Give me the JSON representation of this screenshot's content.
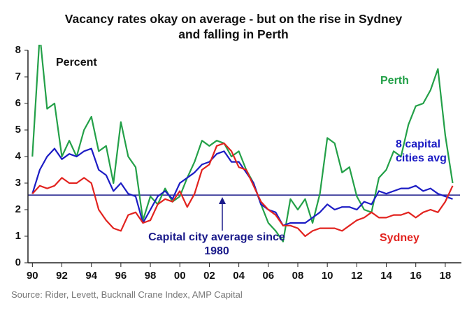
{
  "chart_data": {
    "type": "line",
    "title": "Vacancy rates okay on average - but on the rise in Sydney and falling in Perth",
    "y_label": "Percent",
    "source": "Source: Rider, Levett, Bucknall Crane Index, AMP Capital",
    "xlim": [
      1989.7,
      2019
    ],
    "ylim": [
      0,
      8
    ],
    "yticks": [
      0,
      1,
      2,
      3,
      4,
      5,
      6,
      7,
      8
    ],
    "xticks": [
      {
        "value": 1990,
        "label": "90"
      },
      {
        "value": 1992,
        "label": "92"
      },
      {
        "value": 1994,
        "label": "94"
      },
      {
        "value": 1996,
        "label": "96"
      },
      {
        "value": 1998,
        "label": "98"
      },
      {
        "value": 2000,
        "label": "00"
      },
      {
        "value": 2002,
        "label": "02"
      },
      {
        "value": 2004,
        "label": "04"
      },
      {
        "value": 2006,
        "label": "06"
      },
      {
        "value": 2008,
        "label": "08"
      },
      {
        "value": 2010,
        "label": "10"
      },
      {
        "value": 2012,
        "label": "12"
      },
      {
        "value": 2014,
        "label": "14"
      },
      {
        "value": 2016,
        "label": "16"
      },
      {
        "value": 2018,
        "label": "18"
      }
    ],
    "x": [
      1990,
      1990.5,
      1991,
      1991.5,
      1992,
      1992.5,
      1993,
      1993.5,
      1994,
      1994.5,
      1995,
      1995.5,
      1996,
      1996.5,
      1997,
      1997.5,
      1998,
      1998.5,
      1999,
      1999.5,
      2000,
      2000.5,
      2001,
      2001.5,
      2002,
      2002.5,
      2003,
      2003.5,
      2004,
      2004.5,
      2005,
      2005.5,
      2006,
      2006.5,
      2007,
      2007.5,
      2008,
      2008.5,
      2009,
      2009.5,
      2010,
      2010.5,
      2011,
      2011.5,
      2012,
      2012.5,
      2013,
      2013.5,
      2014,
      2014.5,
      2015,
      2015.5,
      2016,
      2016.5,
      2017,
      2017.5,
      2018,
      2018.5
    ],
    "series": [
      {
        "name": "Perth",
        "color": "#23a048",
        "values": [
          4.0,
          8.6,
          5.8,
          6.0,
          4.0,
          4.6,
          4.0,
          5.0,
          5.5,
          4.2,
          4.4,
          3.0,
          5.3,
          4.0,
          3.6,
          1.6,
          2.5,
          2.2,
          2.8,
          2.3,
          2.5,
          3.2,
          3.8,
          4.6,
          4.4,
          4.6,
          4.5,
          4.0,
          4.2,
          3.5,
          3.0,
          2.2,
          1.5,
          1.2,
          0.8,
          2.4,
          2.0,
          2.4,
          1.5,
          2.6,
          4.7,
          4.5,
          3.4,
          3.6,
          2.5,
          2.0,
          1.9,
          3.2,
          3.5,
          4.2,
          4.0,
          5.2,
          5.9,
          6.0,
          6.5,
          7.3,
          4.8,
          3.0
        ]
      },
      {
        "name": "8 capital cities avg",
        "color": "#1c1cc4",
        "values": [
          2.6,
          3.5,
          4.0,
          4.3,
          3.9,
          4.1,
          4.0,
          4.2,
          4.3,
          3.5,
          3.3,
          2.7,
          3.0,
          2.6,
          2.5,
          1.5,
          2.0,
          2.5,
          2.7,
          2.4,
          3.0,
          3.2,
          3.4,
          3.7,
          3.8,
          4.1,
          4.2,
          3.8,
          3.8,
          3.4,
          3.0,
          2.2,
          2.0,
          1.9,
          1.4,
          1.5,
          1.5,
          1.5,
          1.7,
          1.9,
          2.2,
          2.0,
          2.1,
          2.1,
          2.0,
          2.3,
          2.2,
          2.7,
          2.6,
          2.7,
          2.8,
          2.8,
          2.9,
          2.7,
          2.8,
          2.6,
          2.5,
          2.4
        ]
      },
      {
        "name": "Sydney",
        "color": "#e2231f",
        "values": [
          2.6,
          2.9,
          2.8,
          2.9,
          3.2,
          3.0,
          3.0,
          3.2,
          3.0,
          2.0,
          1.6,
          1.3,
          1.2,
          1.8,
          1.9,
          1.5,
          1.6,
          2.2,
          2.4,
          2.3,
          2.7,
          2.1,
          2.6,
          3.5,
          3.7,
          4.4,
          4.5,
          4.2,
          3.6,
          3.5,
          2.9,
          2.3,
          2.0,
          1.8,
          1.4,
          1.4,
          1.3,
          1.0,
          1.2,
          1.3,
          1.3,
          1.3,
          1.2,
          1.4,
          1.6,
          1.7,
          1.9,
          1.7,
          1.7,
          1.8,
          1.8,
          1.9,
          1.7,
          1.9,
          2.0,
          1.9,
          2.3,
          2.9
        ]
      }
    ],
    "average": {
      "value": 2.55,
      "label": "Capital city average since 1980",
      "color": "#1a1a8a"
    }
  }
}
